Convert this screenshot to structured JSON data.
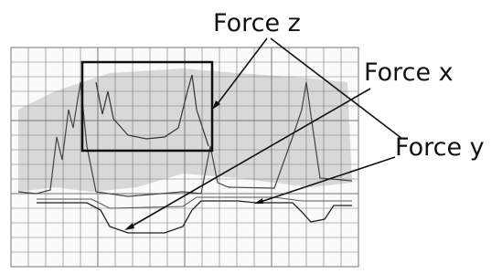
{
  "annotations": [
    "Force z",
    "Force x",
    "Force y"
  ]
}
